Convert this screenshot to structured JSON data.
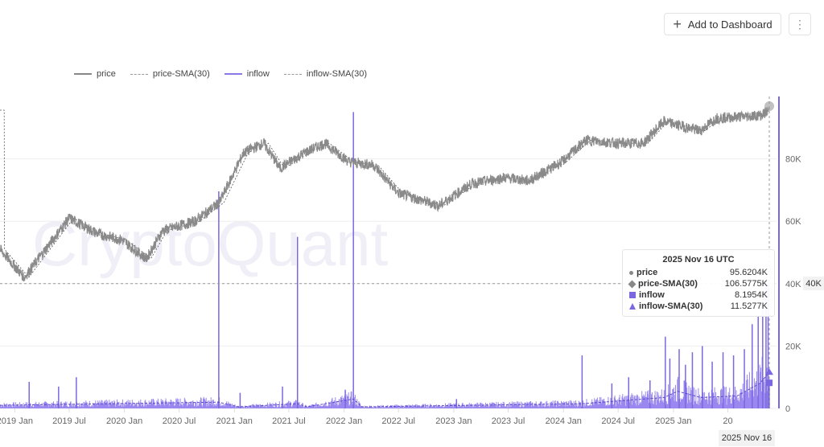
{
  "toolbar": {
    "add_label": "Add to Dashboard",
    "plus_icon": "plus-icon",
    "more_icon": "kebab-menu-icon"
  },
  "watermark": "CryptoQuant",
  "colors": {
    "price": "#8a8a8a",
    "inflow": "#7b68e0",
    "inflow_fill": "#9a88f0",
    "grid": "#eeeeee"
  },
  "chart_data": {
    "type": "line",
    "legend_position": "top-left",
    "legend": [
      "price",
      "price-SMA(30)",
      "inflow",
      "inflow-SMA(30)"
    ],
    "x_ticks": [
      "2019 Jan",
      "2019 Jul",
      "2020 Jan",
      "2020 Jul",
      "2021 Jan",
      "2021 Jul",
      "2022 Jan",
      "2022 Jul",
      "2023 Jan",
      "2023 Jul",
      "2024 Jan",
      "2024 Jul",
      "2025 Jan",
      "20"
    ],
    "x_tick_dates": [
      "2019-01-01",
      "2019-07-01",
      "2020-01-01",
      "2020-07-01",
      "2021-01-01",
      "2021-07-01",
      "2022-01-01",
      "2022-07-01",
      "2023-01-01",
      "2023-07-01",
      "2024-01-01",
      "2024-07-01",
      "2025-01-01",
      "2025-07-01"
    ],
    "y_ticks": [
      "0",
      "20K",
      "40K",
      "60K",
      "80K"
    ],
    "y_tick_values": [
      0,
      20000,
      40000,
      60000,
      80000
    ],
    "ylim": [
      0,
      100000
    ],
    "xlim": [
      "2018-11-13",
      "2025-12-10"
    ],
    "grid": true,
    "series": [
      {
        "name": "price",
        "style": "solid",
        "points": [
          [
            "2018-11-13",
            51000
          ],
          [
            "2019-02-02",
            42000
          ],
          [
            "2019-07-01",
            61000
          ],
          [
            "2019-10-04",
            56000
          ],
          [
            "2019-12-24",
            54000
          ],
          [
            "2020-03-14",
            48000
          ],
          [
            "2020-05-07",
            57000
          ],
          [
            "2020-08-23",
            60000
          ],
          [
            "2020-11-12",
            66000
          ],
          [
            "2021-02-01",
            82000
          ],
          [
            "2021-04-09",
            85000
          ],
          [
            "2021-06-02",
            77000
          ],
          [
            "2021-08-23",
            82000
          ],
          [
            "2021-10-29",
            85000
          ],
          [
            "2022-01-18",
            79000
          ],
          [
            "2022-04-09",
            78000
          ],
          [
            "2022-06-30",
            69000
          ],
          [
            "2022-11-13",
            65000
          ],
          [
            "2023-03-01",
            72000
          ],
          [
            "2023-06-18",
            74000
          ],
          [
            "2023-09-08",
            73000
          ],
          [
            "2023-12-26",
            79000
          ],
          [
            "2024-03-16",
            86000
          ],
          [
            "2024-07-03",
            85000
          ],
          [
            "2024-09-23",
            85000
          ],
          [
            "2024-11-29",
            92000
          ],
          [
            "2025-03-31",
            89000
          ],
          [
            "2025-05-24",
            93000
          ],
          [
            "2025-10-20",
            94000
          ],
          [
            "2025-11-16",
            95620
          ]
        ]
      },
      {
        "name": "inflow",
        "style": "bars",
        "points": [
          [
            "2019-02-18",
            8500
          ],
          [
            "2019-05-27",
            7000
          ],
          [
            "2019-07-25",
            10000
          ],
          [
            "2020-11-10",
            69600
          ],
          [
            "2021-01-20",
            5000
          ],
          [
            "2021-07-30",
            55000
          ],
          [
            "2021-06-10",
            7000
          ],
          [
            "2022-02-01",
            95000
          ],
          [
            "2022-01-05",
            6000
          ],
          [
            "2023-01-10",
            3000
          ],
          [
            "2024-03-03",
            17000
          ],
          [
            "2024-06-10",
            8000
          ],
          [
            "2024-08-05",
            10000
          ],
          [
            "2024-10-15",
            9000
          ],
          [
            "2024-12-05",
            23000
          ],
          [
            "2024-12-20",
            16000
          ],
          [
            "2025-01-20",
            19000
          ],
          [
            "2025-02-10",
            14000
          ],
          [
            "2025-03-05",
            18000
          ],
          [
            "2025-04-07",
            20000
          ],
          [
            "2025-05-10",
            15000
          ],
          [
            "2025-06-15",
            18000
          ],
          [
            "2025-07-20",
            17000
          ],
          [
            "2025-08-25",
            19000
          ],
          [
            "2025-09-20",
            27000
          ],
          [
            "2025-10-10",
            30000
          ],
          [
            "2025-10-25",
            36000
          ],
          [
            "2025-11-05",
            42000
          ],
          [
            "2025-11-12",
            40000
          ],
          [
            "2025-11-16",
            8195
          ]
        ]
      },
      {
        "name": "inflow-SMA(30)",
        "style": "dashed",
        "points": [
          [
            "2018-11-13",
            1000
          ],
          [
            "2020-11-10",
            2000
          ],
          [
            "2021-01-15",
            500
          ],
          [
            "2021-07-30",
            1500
          ],
          [
            "2021-08-30",
            500
          ],
          [
            "2022-02-01",
            3000
          ],
          [
            "2022-03-01",
            500
          ],
          [
            "2024-03-01",
            1500
          ],
          [
            "2024-12-01",
            3500
          ],
          [
            "2025-01-15",
            5500
          ],
          [
            "2025-04-01",
            3500
          ],
          [
            "2025-08-01",
            4000
          ],
          [
            "2025-10-15",
            8000
          ],
          [
            "2025-11-16",
            11528
          ]
        ]
      }
    ],
    "crosshair": {
      "date": "2025 Nov 16",
      "y_label": "40K"
    },
    "tooltip": {
      "title": "2025 Nov 16 UTC",
      "rows": [
        {
          "label": "price",
          "value": "95.6204K",
          "marker": "circle"
        },
        {
          "label": "price-SMA(30)",
          "value": "106.5775K",
          "marker": "diamond"
        },
        {
          "label": "inflow",
          "value": "8.1954K",
          "marker": "square"
        },
        {
          "label": "inflow-SMA(30)",
          "value": "11.5277K",
          "marker": "triangle"
        }
      ]
    }
  }
}
